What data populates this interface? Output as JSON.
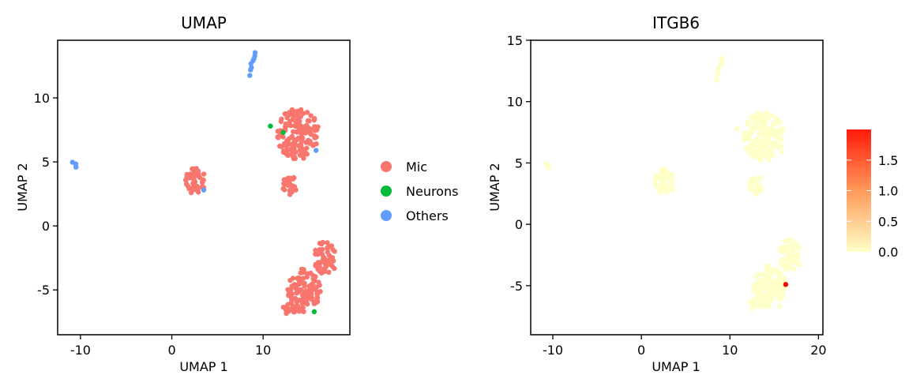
{
  "colors": {
    "mic": "#F8766D",
    "neurons": "#00BA38",
    "others": "#619CFF",
    "expr_low": "#FFFFC8",
    "expr_mid": "#FF9A5A",
    "expr_high": "#FF0000"
  },
  "chart_data": [
    {
      "type": "scatter",
      "title": "UMAP",
      "xlabel": "UMAP 1",
      "ylabel": "UMAP 2",
      "xlim": [
        -12.5,
        19.5
      ],
      "ylim": [
        -8.5,
        14.5
      ],
      "x_ticks": [
        -10,
        0,
        10
      ],
      "y_ticks": [
        -5,
        0,
        5,
        10
      ],
      "grid": false,
      "legend_position": "right",
      "legend": [
        {
          "label": "Mic",
          "color": "#F8766D"
        },
        {
          "label": "Neurons",
          "color": "#00BA38"
        },
        {
          "label": "Others",
          "color": "#619CFF"
        }
      ],
      "clusters": [
        {
          "series": "Others",
          "shape": "line",
          "x0": 8.5,
          "y0": 11.8,
          "x1": 9.1,
          "y1": 13.6,
          "count": 8
        },
        {
          "series": "Others",
          "shape": "line",
          "x0": -10.8,
          "y0": 4.9,
          "x1": -10.4,
          "y1": 4.6,
          "count": 3
        },
        {
          "series": "Mic",
          "shape": "blob",
          "cx": 2.6,
          "cy": 3.5,
          "rx": 1.1,
          "ry": 1.1,
          "count": 45
        },
        {
          "series": "Mic",
          "shape": "blob",
          "cx": 13.8,
          "cy": 7.2,
          "rx": 2.3,
          "ry": 2.0,
          "count": 150
        },
        {
          "series": "Mic",
          "shape": "blob",
          "cx": 12.9,
          "cy": 3.2,
          "rx": 0.8,
          "ry": 0.8,
          "count": 25
        },
        {
          "series": "Mic",
          "shape": "blob",
          "cx": 16.8,
          "cy": -2.5,
          "rx": 1.3,
          "ry": 1.3,
          "count": 50
        },
        {
          "series": "Mic",
          "shape": "blob",
          "cx": 14.5,
          "cy": -5.0,
          "rx": 1.8,
          "ry": 1.8,
          "count": 110
        },
        {
          "series": "Mic",
          "shape": "blob",
          "cx": 13.0,
          "cy": -6.5,
          "rx": 1.0,
          "ry": 0.4,
          "count": 20
        }
      ],
      "points": [
        {
          "series": "Neurons",
          "x": 10.8,
          "y": 7.8
        },
        {
          "series": "Neurons",
          "x": 12.2,
          "y": 7.3
        },
        {
          "series": "Neurons",
          "x": 15.6,
          "y": -6.7
        },
        {
          "series": "Others",
          "x": 15.8,
          "y": 5.9
        },
        {
          "series": "Others",
          "x": 3.5,
          "y": 2.8
        }
      ]
    },
    {
      "type": "scatter",
      "title": "ITGB6",
      "xlabel": "UMAP 1",
      "ylabel": "UMAP 2",
      "xlim": [
        -12.5,
        20.5
      ],
      "ylim": [
        -9,
        15
      ],
      "x_ticks": [
        -10,
        0,
        10,
        20
      ],
      "y_ticks": [
        -5,
        0,
        5,
        10,
        15
      ],
      "grid": false,
      "legend_position": "right",
      "colorbar": {
        "min": 0,
        "max": 2.0,
        "ticks": [
          "0.0",
          "0.5",
          "1.0",
          "1.5"
        ],
        "tick_values": [
          0,
          0.5,
          1.0,
          1.5
        ]
      },
      "highlight": {
        "x": 16.3,
        "y": -4.9,
        "value": 2.0
      }
    }
  ]
}
